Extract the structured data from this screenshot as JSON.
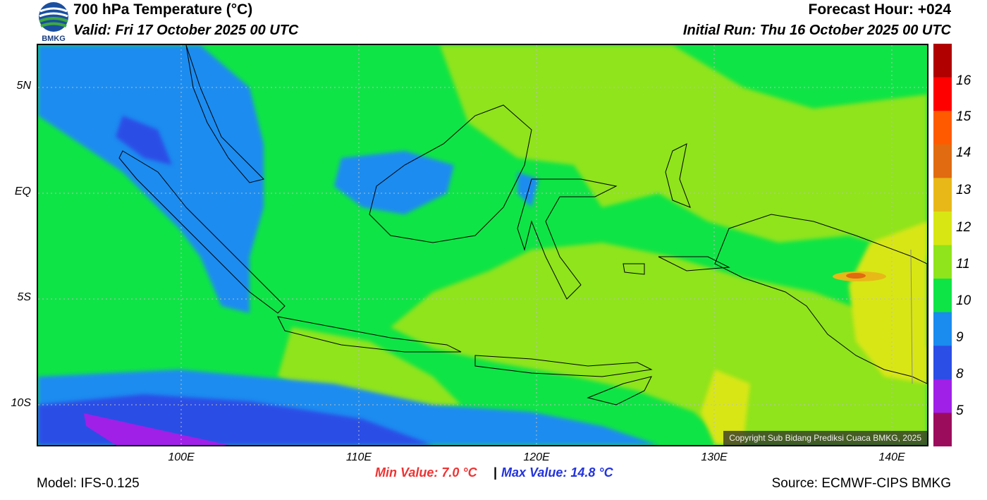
{
  "header": {
    "title": "700 hPa Temperature (°C)",
    "valid": "Valid: Fri 17 October 2025 00 UTC",
    "forecast_hour": "Forecast Hour: +024",
    "initial_run": "Initial Run: Thu 16 October 2025 00 UTC",
    "logo_text": "BMKG"
  },
  "map": {
    "lat_labels": [
      "5N",
      "EQ",
      "5S",
      "10S"
    ],
    "lon_labels": [
      "100E",
      "110E",
      "120E",
      "130E",
      "140E"
    ],
    "copyright": "Copyright Sub Bidang Prediksi Cuaca BMKG, 2025"
  },
  "colorbar": {
    "labels": [
      "16",
      "15",
      "14",
      "13",
      "12",
      "11",
      "10",
      "9",
      "8",
      "5"
    ],
    "colors": [
      "#b00000",
      "#ff0000",
      "#ff5a00",
      "#e06b10",
      "#e8b818",
      "#d8e614",
      "#8fe41b",
      "#0fe446",
      "#1a8cf0",
      "#2a4ee6",
      "#a020e8",
      "#9c0c5c"
    ]
  },
  "stats": {
    "min": "Min Value: 7.0 °C",
    "separator": "|",
    "max": "Max Value: 14.8 °C",
    "min_color": "#ee3333",
    "max_color": "#2233dd"
  },
  "footer": {
    "model": "Model: IFS-0.125",
    "source": "Source: ECMWF-CIPS BMKG"
  }
}
